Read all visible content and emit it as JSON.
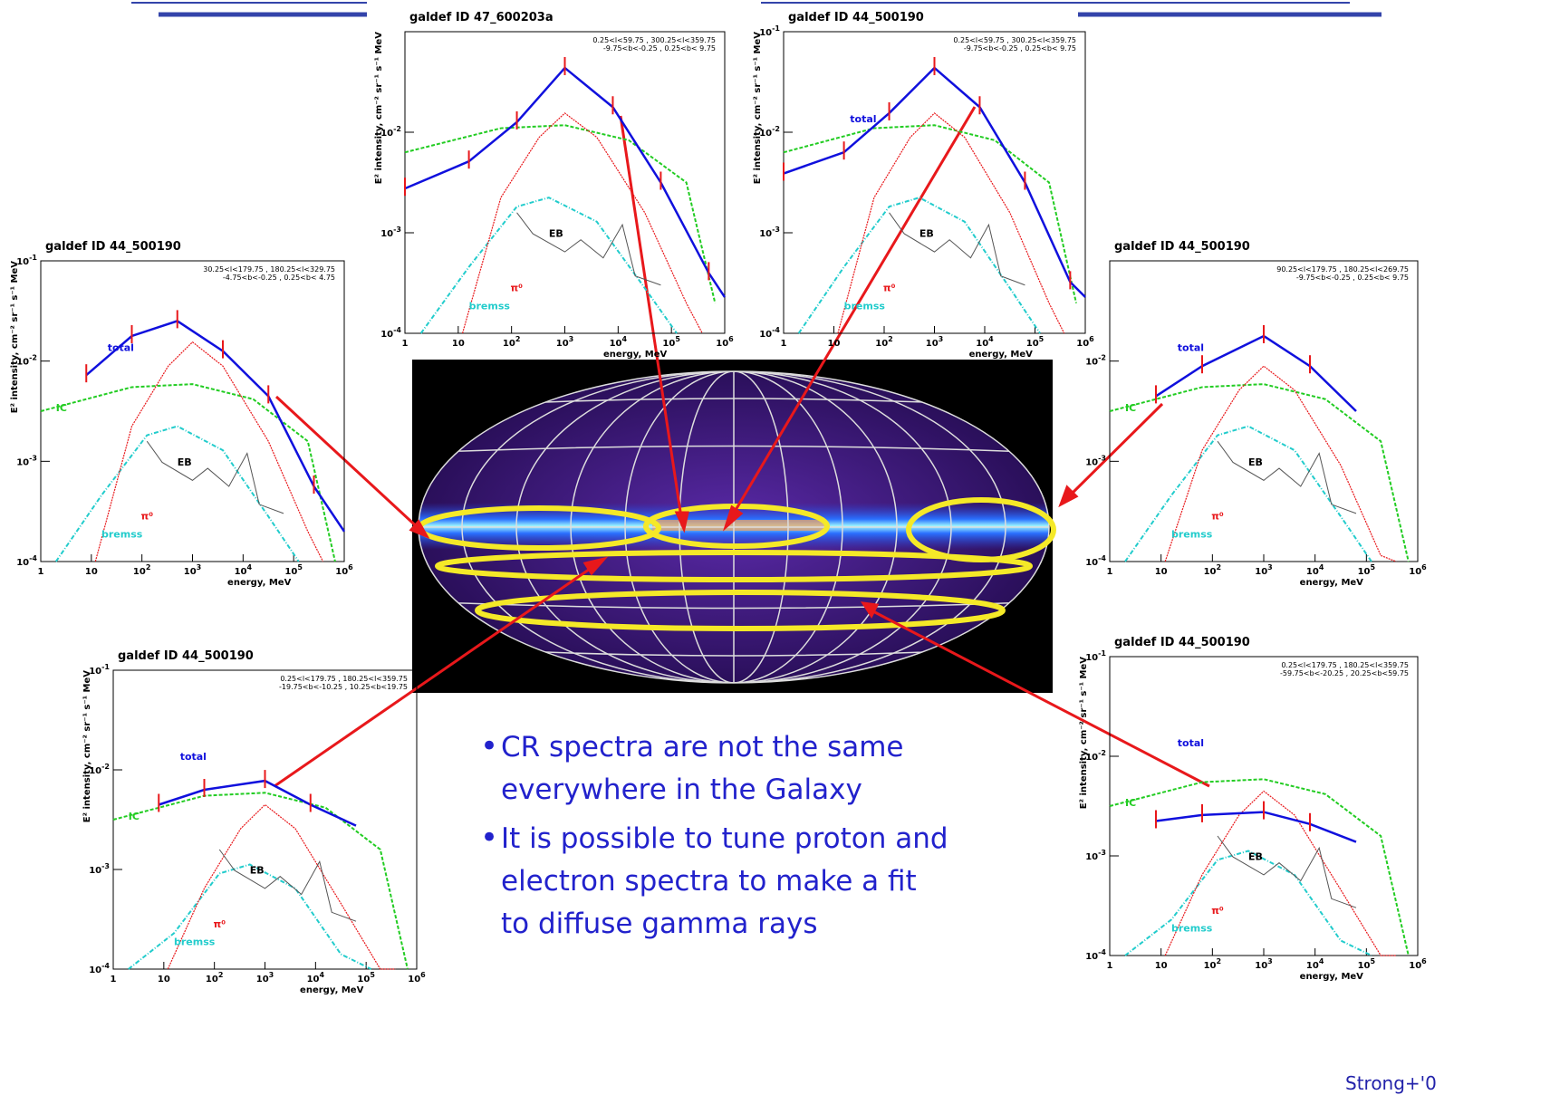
{
  "slide": {
    "panels": [
      {
        "title": "galdef ID 47_600203a",
        "region": [
          "0.25<l<59.75 , 300.25<l<359.75",
          "-9.75<b<-0.25 , 0.25<b< 9.75"
        ],
        "y_axis_label": "E² intensity, cm⁻² sr⁻¹ s⁻¹ MeV",
        "x_axis_label": "energy, MeV",
        "y_ticks": [
          [
            "10",
            "-2"
          ],
          [
            "10",
            "-3"
          ],
          [
            "10",
            "-4"
          ]
        ],
        "x_ticks": [
          [
            "1"
          ],
          [
            "10"
          ],
          [
            "10",
            "2"
          ],
          [
            "10",
            "3"
          ],
          [
            "10",
            "4"
          ],
          [
            "10",
            "5"
          ],
          [
            "10",
            "6"
          ]
        ],
        "labels": {
          "eb": "EB",
          "pi0": "π⁰",
          "bremss": "bremss"
        }
      },
      {
        "title": "galdef ID 44_500190",
        "region": [
          "0.25<l<59.75 , 300.25<l<359.75",
          "-9.75<b<-0.25 , 0.25<b< 9.75"
        ],
        "y_axis_label": "E² intensity, cm⁻² sr⁻¹ s⁻¹ MeV",
        "x_axis_label": "energy, MeV",
        "y_ticks": [
          [
            "10",
            "-1"
          ],
          [
            "10",
            "-2"
          ],
          [
            "10",
            "-3"
          ],
          [
            "10",
            "-4"
          ]
        ],
        "x_ticks": [
          [
            "1"
          ],
          [
            "10"
          ],
          [
            "10",
            "2"
          ],
          [
            "10",
            "3"
          ],
          [
            "10",
            "4"
          ],
          [
            "10",
            "5"
          ],
          [
            "10",
            "6"
          ]
        ],
        "labels": {
          "total": "total",
          "eb": "EB",
          "pi0": "π⁰",
          "bremss": "bremss"
        }
      },
      {
        "title": "galdef ID 44_500190",
        "region": [
          "30.25<l<179.75 , 180.25<l<329.75",
          "-4.75<b<-0.25 , 0.25<b< 4.75"
        ],
        "y_axis_label": "E² intensity, cm⁻² sr⁻¹ s⁻¹ MeV",
        "x_axis_label": "energy, MeV",
        "y_ticks": [
          [
            "10",
            "-1"
          ],
          [
            "10",
            "-2"
          ],
          [
            "10",
            "-3"
          ],
          [
            "10",
            "-4"
          ]
        ],
        "x_ticks": [
          [
            "1"
          ],
          [
            "10"
          ],
          [
            "10",
            "2"
          ],
          [
            "10",
            "3"
          ],
          [
            "10",
            "4"
          ],
          [
            "10",
            "5"
          ],
          [
            "10",
            "6"
          ]
        ],
        "labels": {
          "total": "total",
          "ic": "IC",
          "eb": "EB",
          "pi0": "π⁰",
          "bremss": "bremss"
        }
      },
      {
        "title": "galdef ID 44_500190",
        "region": [
          "90.25<l<179.75 , 180.25<l<269.75",
          "-9.75<b<-0.25 , 0.25<b< 9.75"
        ],
        "x_axis_label": "energy, MeV",
        "y_ticks": [
          [
            "10",
            "-2"
          ],
          [
            "10",
            "-3"
          ],
          [
            "10",
            "-4"
          ]
        ],
        "x_ticks": [
          [
            "1"
          ],
          [
            "10"
          ],
          [
            "10",
            "2"
          ],
          [
            "10",
            "3"
          ],
          [
            "10",
            "4"
          ],
          [
            "10",
            "5"
          ],
          [
            "10",
            "6"
          ]
        ],
        "labels": {
          "total": "total",
          "ic": "IC",
          "eb": "EB",
          "pi0": "π⁰",
          "bremss": "bremss"
        }
      },
      {
        "title": "galdef ID 44_500190",
        "region": [
          "0.25<l<179.75 , 180.25<l<359.75",
          "-19.75<b<-10.25 , 10.25<b<19.75"
        ],
        "y_axis_label": "E² intensity, cm⁻² sr⁻¹ s⁻¹ MeV",
        "x_axis_label": "energy, MeV",
        "y_ticks": [
          [
            "10",
            "-1"
          ],
          [
            "10",
            "-2"
          ],
          [
            "10",
            "-3"
          ],
          [
            "10",
            "-4"
          ]
        ],
        "x_ticks": [
          [
            "1"
          ],
          [
            "10"
          ],
          [
            "10",
            "2"
          ],
          [
            "10",
            "3"
          ],
          [
            "10",
            "4"
          ],
          [
            "10",
            "5"
          ],
          [
            "10",
            "6"
          ]
        ],
        "labels": {
          "total": "total",
          "ic": "IC",
          "eb": "EB",
          "pi0": "π⁰",
          "bremss": "bremss"
        }
      },
      {
        "title": "galdef ID 44_500190",
        "region": [
          "0.25<l<179.75 , 180.25<l<359.75",
          "-59.75<b<-20.25 , 20.25<b<59.75"
        ],
        "y_axis_label": "E² intensity, cm⁻² sr⁻¹ s⁻¹ MeV",
        "x_axis_label": "energy, MeV",
        "y_ticks": [
          [
            "10",
            "-1"
          ],
          [
            "10",
            "-2"
          ],
          [
            "10",
            "-3"
          ],
          [
            "10",
            "-4"
          ]
        ],
        "x_ticks": [
          [
            "1"
          ],
          [
            "10"
          ],
          [
            "10",
            "2"
          ],
          [
            "10",
            "3"
          ],
          [
            "10",
            "4"
          ],
          [
            "10",
            "5"
          ],
          [
            "10",
            "6"
          ]
        ],
        "labels": {
          "total": "total",
          "ic": "IC",
          "eb": "EB",
          "pi0": "π⁰",
          "bremss": "bremss"
        }
      }
    ],
    "bullets": [
      [
        "CR spectra are not the same",
        "everywhere in the Galaxy"
      ],
      [
        "It is possible to tune proton and",
        "electron spectra to make a fit",
        "to diffuse gamma rays"
      ]
    ],
    "citation": "Strong+'0"
  }
}
